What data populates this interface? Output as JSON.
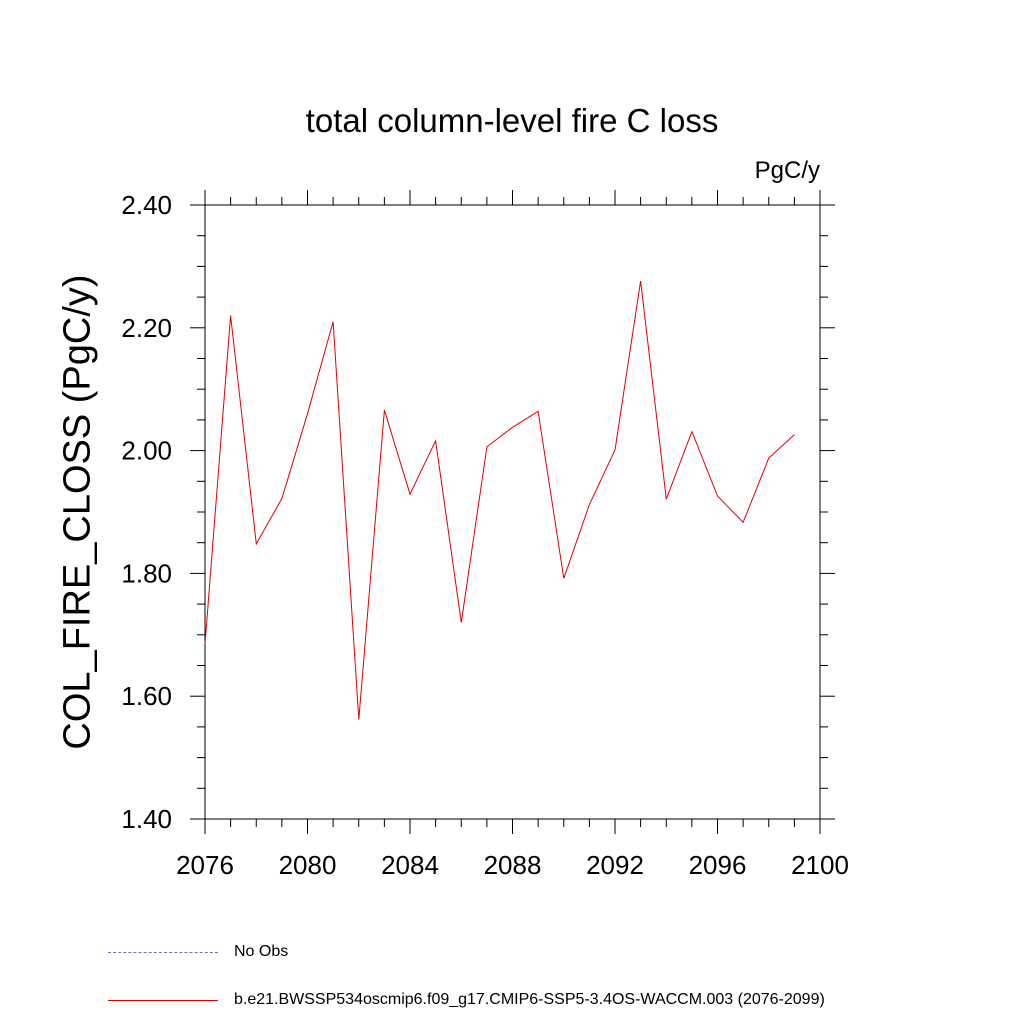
{
  "chart_data": {
    "type": "line",
    "title": "total column-level fire C loss",
    "units_label": "PgC/y",
    "xlabel": "",
    "ylabel": "COL_FIRE_CLOSS  (PgC/y)",
    "xlim": [
      2076,
      2100
    ],
    "ylim": [
      1.4,
      2.4
    ],
    "x_ticks": [
      2076,
      2080,
      2084,
      2088,
      2092,
      2096,
      2100
    ],
    "y_ticks": [
      1.4,
      1.6,
      1.8,
      2.0,
      2.2,
      2.4
    ],
    "y_tick_labels": [
      "1.40",
      "1.60",
      "1.80",
      "2.00",
      "2.20",
      "2.40"
    ],
    "series": [
      {
        "name": "b.e21.BWSSP534oscmip6.f09_g17.CMIP6-SSP5-3.4OS-WACCM.003 (2076-2099)",
        "color": "#e00000",
        "x": [
          2076,
          2077,
          2078,
          2079,
          2080,
          2081,
          2082,
          2083,
          2084,
          2085,
          2086,
          2087,
          2088,
          2089,
          2090,
          2091,
          2092,
          2093,
          2094,
          2095,
          2096,
          2097,
          2098,
          2099
        ],
        "values": [
          1.685,
          2.22,
          1.848,
          1.922,
          2.06,
          2.21,
          1.562,
          2.066,
          1.929,
          2.016,
          1.72,
          2.006,
          2.038,
          2.064,
          1.792,
          1.912,
          2.001,
          2.276,
          1.921,
          2.031,
          1.926,
          1.883,
          1.988,
          2.026
        ]
      }
    ],
    "legend": [
      {
        "label": "No Obs",
        "style": "dashed",
        "color": "#7b6fb0"
      },
      {
        "label": "b.e21.BWSSP534oscmip6.f09_g17.CMIP6-SSP5-3.4OS-WACCM.003 (2076-2099)",
        "style": "solid",
        "color": "#e00000"
      }
    ]
  }
}
